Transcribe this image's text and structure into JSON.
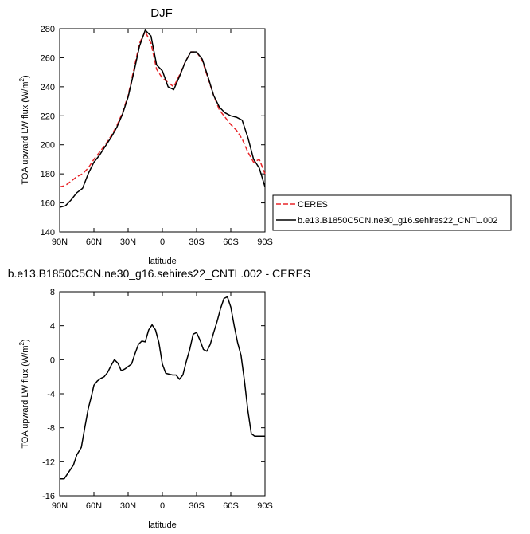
{
  "chart_data": [
    {
      "type": "line",
      "title": "DJF",
      "xlabel": "latitude",
      "ylabel": "TOA upward LW flux (W/m",
      "ylabel_sup": "2",
      "ylabel_close": ")",
      "ylim": [
        140,
        280
      ],
      "yticks": [
        140,
        160,
        180,
        200,
        220,
        240,
        260,
        280
      ],
      "xlim": [
        -90,
        90
      ],
      "xticks": [
        -90,
        -60,
        -30,
        0,
        30,
        60,
        90
      ],
      "xtick_labels": [
        "90N",
        "60N",
        "30N",
        "0",
        "30S",
        "60S",
        "90S"
      ],
      "legend_position": "right",
      "series": [
        {
          "name": "CERES",
          "color": "#e8262a",
          "dash": true,
          "x": [
            -90,
            -85,
            -80,
            -75,
            -70,
            -65,
            -60,
            -55,
            -50,
            -45,
            -40,
            -35,
            -30,
            -25,
            -20,
            -15,
            -10,
            -5,
            0,
            5,
            10,
            15,
            20,
            25,
            30,
            35,
            40,
            45,
            50,
            55,
            60,
            65,
            70,
            75,
            80,
            85,
            90
          ],
          "y": [
            171,
            172,
            175,
            178,
            180,
            184,
            190,
            195,
            200,
            206,
            213,
            222,
            234,
            252,
            270,
            278,
            270,
            252,
            246,
            243,
            240,
            248,
            257,
            264,
            264,
            258,
            246,
            234,
            224,
            219,
            214,
            210,
            204,
            195,
            188,
            190,
            180
          ]
        },
        {
          "name": "b.e13.B1850C5CN.ne30_g16.sehires22_CNTL.002",
          "color": "#000000",
          "dash": false,
          "x": [
            -90,
            -85,
            -80,
            -75,
            -70,
            -65,
            -60,
            -55,
            -50,
            -45,
            -40,
            -35,
            -30,
            -25,
            -20,
            -15,
            -10,
            -5,
            0,
            5,
            10,
            15,
            20,
            25,
            30,
            35,
            40,
            45,
            50,
            55,
            60,
            65,
            70,
            75,
            80,
            85,
            90
          ],
          "y": [
            157,
            158,
            162,
            167,
            170,
            180,
            188,
            193,
            199,
            205,
            212,
            221,
            233,
            250,
            268,
            279,
            275,
            255,
            251,
            240,
            238,
            247,
            257,
            264,
            264,
            259,
            247,
            234,
            226,
            222,
            220,
            219,
            217,
            205,
            190,
            184,
            171
          ]
        }
      ]
    },
    {
      "type": "line",
      "title": "b.e13.B1850C5CN.ne30_g16.sehires22_CNTL.002 - CERES",
      "xlabel": "latitude",
      "ylabel": "TOA upward LW flux (W/m",
      "ylabel_sup": "2",
      "ylabel_close": ")",
      "ylim": [
        -16,
        8
      ],
      "yticks": [
        -16,
        -12,
        -8,
        -4,
        0,
        4,
        8
      ],
      "xlim": [
        -90,
        90
      ],
      "xticks": [
        -90,
        -60,
        -30,
        0,
        30,
        60,
        90
      ],
      "xtick_labels": [
        "90N",
        "60N",
        "30N",
        "0",
        "30S",
        "60S",
        "90S"
      ],
      "series": [
        {
          "color": "#000000",
          "dash": false,
          "x": [
            -90,
            -86,
            -82,
            -78,
            -75,
            -71,
            -68,
            -65,
            -62,
            -60,
            -57,
            -54,
            -51,
            -48,
            -45,
            -42,
            -39,
            -36,
            -33,
            -30,
            -27,
            -24,
            -21,
            -18,
            -15,
            -12,
            -9,
            -6,
            -3,
            0,
            3,
            6,
            9,
            12,
            15,
            18,
            21,
            24,
            27,
            30,
            33,
            36,
            39,
            42,
            45,
            48,
            51,
            54,
            57,
            60,
            63,
            66,
            69,
            72,
            75,
            78,
            81,
            84,
            87,
            90
          ],
          "y": [
            -14,
            -14,
            -13.2,
            -12.4,
            -11.2,
            -10.3,
            -8,
            -5.8,
            -4.2,
            -3,
            -2.5,
            -2.2,
            -2,
            -1.5,
            -0.7,
            0,
            -0.4,
            -1.3,
            -1.1,
            -0.8,
            -0.5,
            0.7,
            1.8,
            2.2,
            2.1,
            3.5,
            4.1,
            3.5,
            2,
            -0.5,
            -1.6,
            -1.7,
            -1.8,
            -1.8,
            -2.3,
            -1.8,
            -0.2,
            1.2,
            3,
            3.2,
            2.3,
            1.2,
            1,
            1.8,
            3.2,
            4.5,
            6,
            7.2,
            7.4,
            6.2,
            4,
            2,
            0.5,
            -2.5,
            -6,
            -8.7,
            -9,
            -9,
            -9,
            -9
          ]
        }
      ]
    }
  ]
}
